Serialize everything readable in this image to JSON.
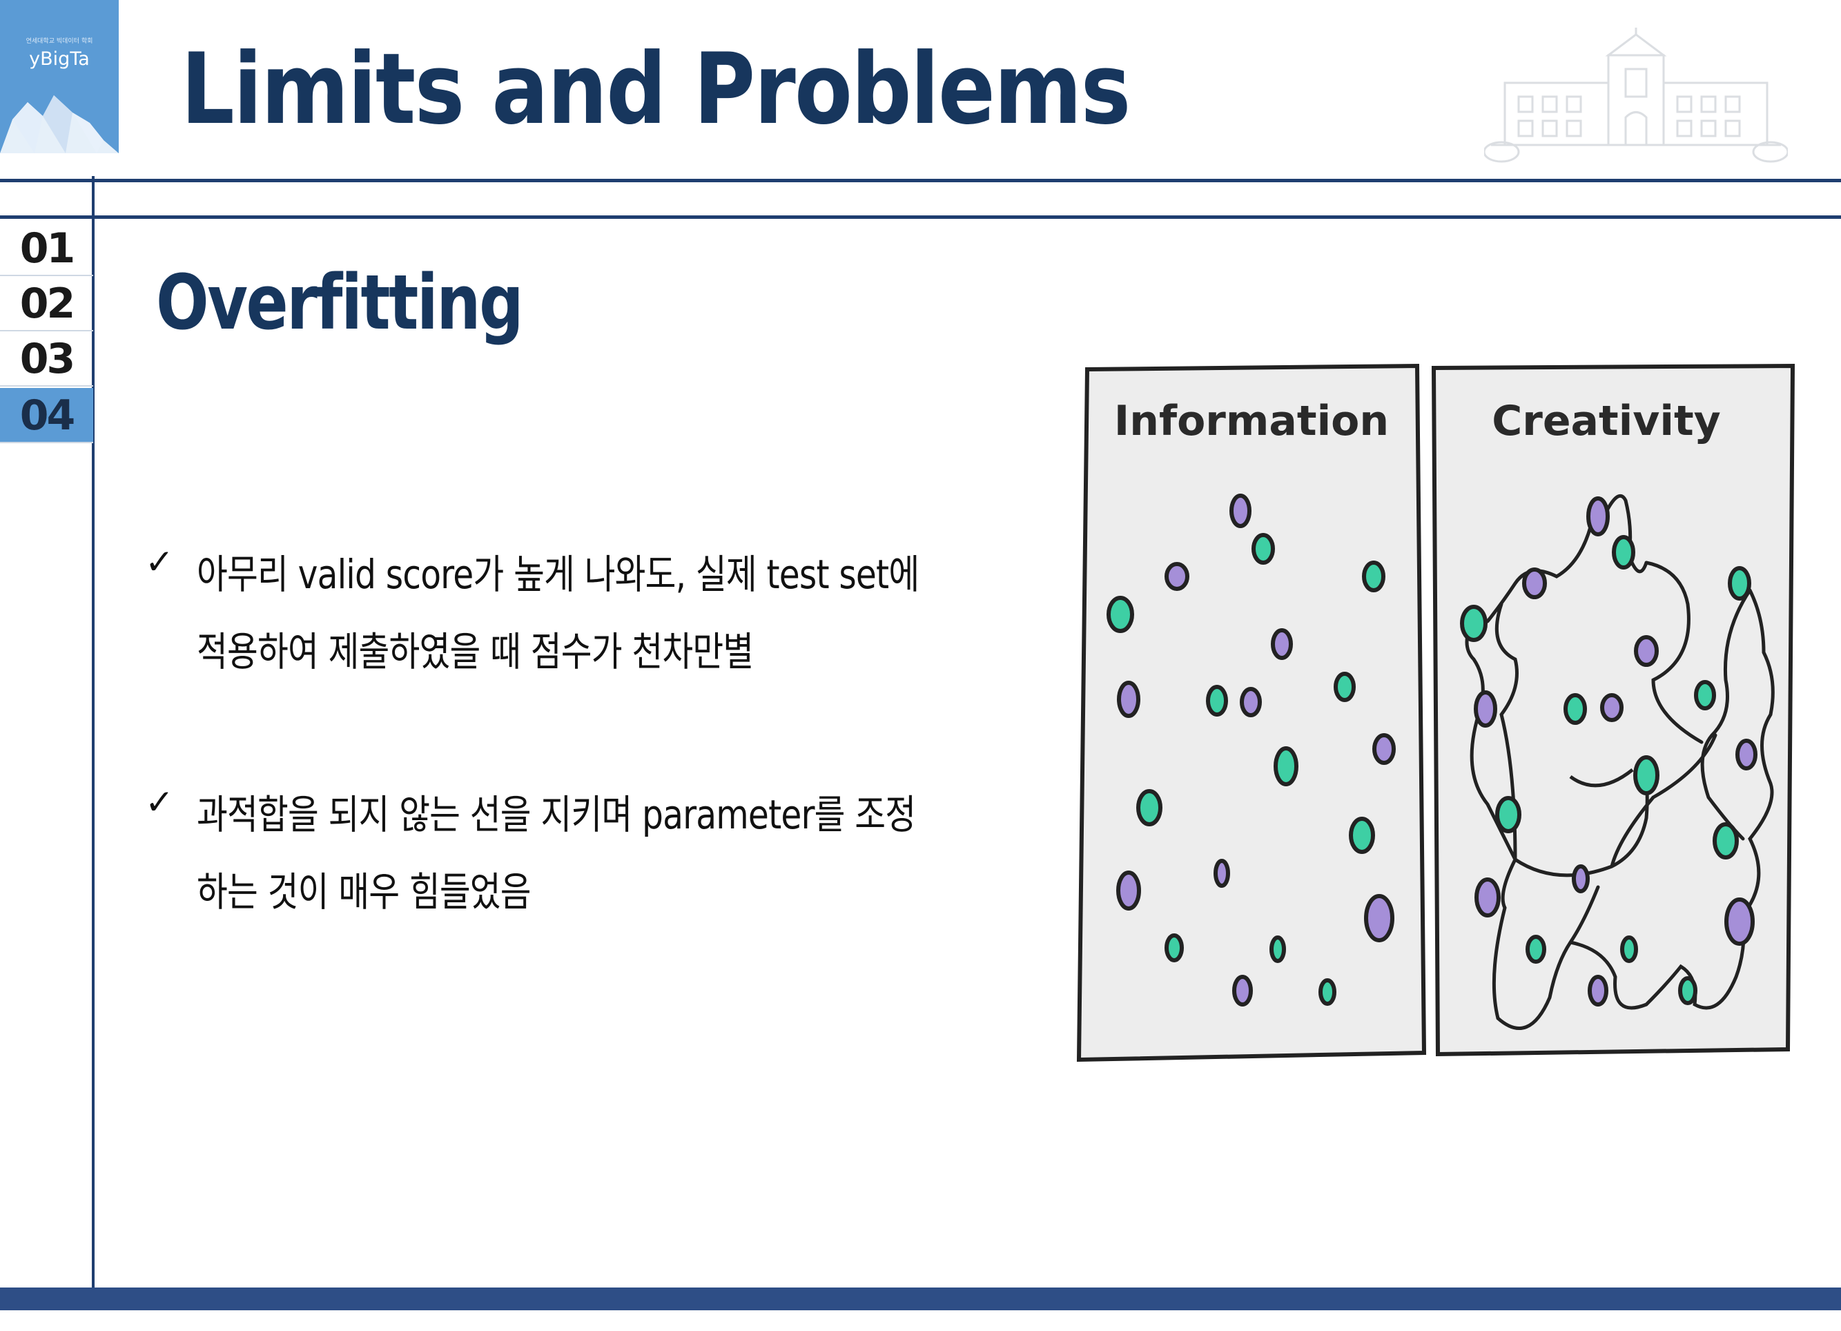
{
  "logo": {
    "tagline": "연세대학교 빅데이터 학회",
    "name": "yBigTa"
  },
  "title": "Limits and Problems",
  "nav": {
    "items": [
      {
        "label": "01",
        "active": false
      },
      {
        "label": "02",
        "active": false
      },
      {
        "label": "03",
        "active": false
      },
      {
        "label": "04",
        "active": true
      }
    ]
  },
  "section": {
    "heading": "Overfitting"
  },
  "bullets": [
    {
      "mark": "✓",
      "lines": [
        "아무리 valid score가 높게 나와도, 실제 test set에",
        "적용하여 제출하였을 때 점수가 천차만별"
      ]
    },
    {
      "mark": "✓",
      "lines": [
        "과적합을 되지 않는 선을 지키며 parameter를 조정",
        "하는 것이 매우 힘들었음"
      ]
    }
  ],
  "illustration": {
    "panels": [
      {
        "label": "Information"
      },
      {
        "label": "Creativity"
      }
    ],
    "colors": {
      "purple": "#a58fd8",
      "green": "#3ecfa4",
      "panel": "#ededed",
      "outline": "#222222"
    }
  },
  "colors": {
    "navy": "#17365d",
    "rule": "#1f3e70",
    "accent": "#5b9bd5",
    "footer": "#2e4e86"
  }
}
